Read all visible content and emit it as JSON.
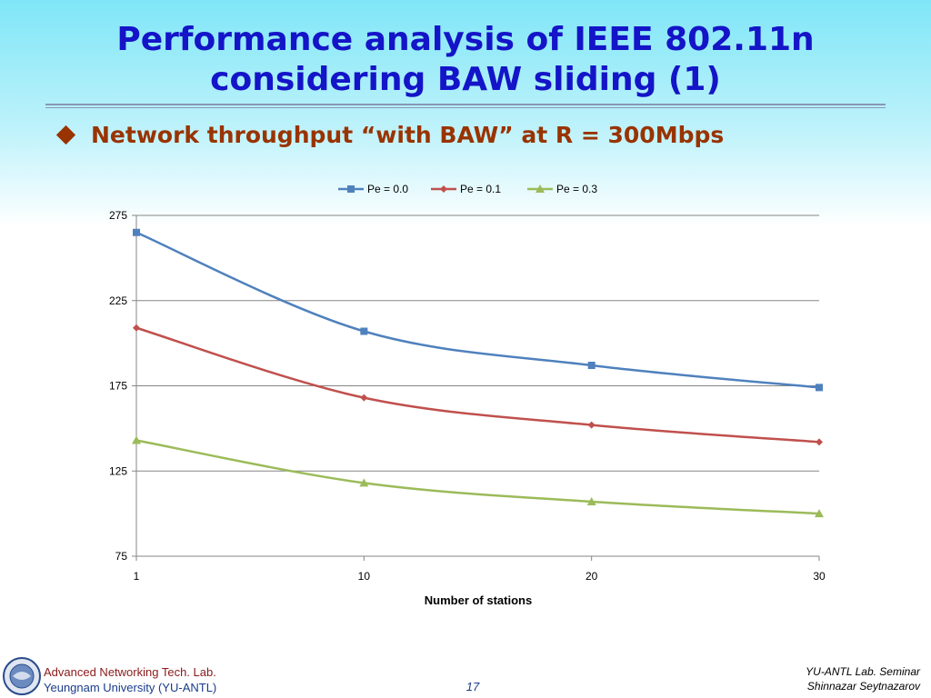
{
  "slide": {
    "title_line1": "Performance analysis of IEEE 802.11n",
    "title_line2": "considering BAW sliding (1)",
    "bullet": "Network throughput “with BAW” at R = 300Mbps",
    "page_number": "17"
  },
  "footer": {
    "left_line1": "Advanced Networking Tech. Lab.",
    "left_line2": "Yeungnam University (YU-ANTL)",
    "right_line1": "YU-ANTL Lab. Seminar",
    "right_line2": "Shinnazar Seytnazarov"
  },
  "chart_data": {
    "type": "line",
    "x": [
      1,
      10,
      20,
      30
    ],
    "x_tick_labels": [
      "1",
      "10",
      "20",
      "30"
    ],
    "series": [
      {
        "name": "Pe = 0.0",
        "values": [
          265,
          207,
          187,
          174
        ],
        "color": "#4f81bd",
        "marker": "square"
      },
      {
        "name": "Pe = 0.1",
        "values": [
          209,
          168,
          152,
          142
        ],
        "color": "#c0504d",
        "marker": "diamond"
      },
      {
        "name": "Pe = 0.3",
        "values": [
          143,
          118,
          107,
          100
        ],
        "color": "#9bbb59",
        "marker": "triangle"
      }
    ],
    "title": "",
    "xlabel": "Number of stations",
    "ylabel": "",
    "ylim": [
      75,
      275
    ],
    "yticks": [
      75,
      125,
      175,
      225,
      275
    ],
    "grid": true,
    "legend": "top"
  }
}
